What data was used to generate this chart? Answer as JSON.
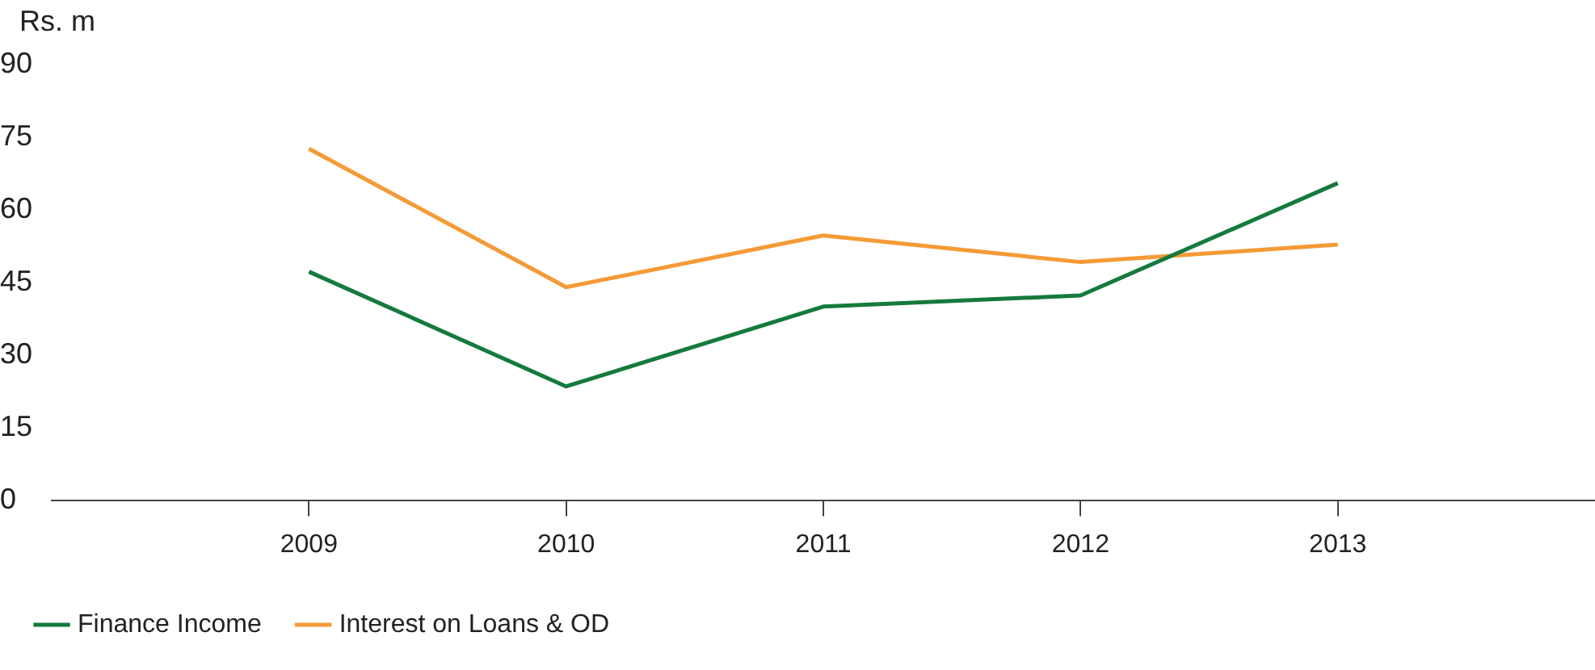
{
  "chart_data": {
    "type": "line",
    "ylabel": "Rs. m",
    "x": [
      2009,
      2010,
      2011,
      2012,
      2013
    ],
    "xlim": [
      2008,
      2014
    ],
    "xticks": [
      2009,
      2010,
      2011,
      2012,
      2013
    ],
    "ylim": [
      0,
      90
    ],
    "yticks": [
      0,
      15,
      30,
      45,
      60,
      75,
      90
    ],
    "grid": false,
    "legend": "bottom left",
    "marker": "none",
    "line_style": "solid",
    "series": [
      {
        "name": "Finance Income",
        "color": "#157a3c",
        "values": [
          47.2,
          23.5,
          40,
          42.3,
          65.5
        ]
      },
      {
        "name": "Interest on Loans & OD",
        "color": "#f59a36",
        "values": [
          72.6,
          44,
          54.7,
          49.2,
          52.8
        ]
      }
    ]
  }
}
